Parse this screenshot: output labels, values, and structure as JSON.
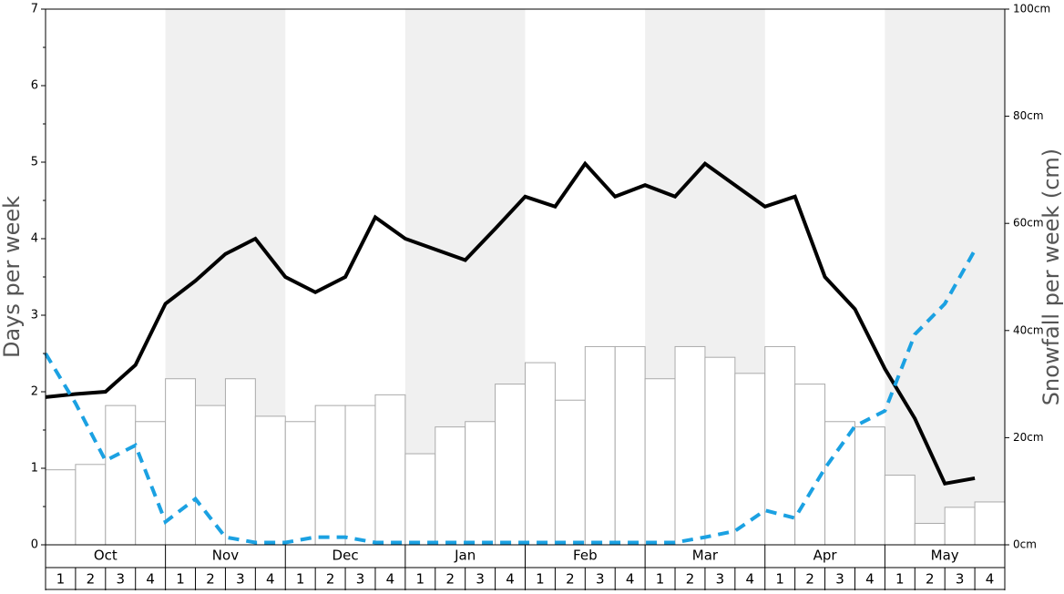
{
  "chart_data": {
    "type": "bar",
    "months": [
      "Oct",
      "Nov",
      "Dec",
      "Jan",
      "Feb",
      "Mar",
      "Apr",
      "May"
    ],
    "shaded_months": [
      false,
      true,
      false,
      true,
      false,
      true,
      false,
      true
    ],
    "categories": [
      "1",
      "2",
      "3",
      "4",
      "1",
      "2",
      "3",
      "4",
      "1",
      "2",
      "3",
      "4",
      "1",
      "2",
      "3",
      "4",
      "1",
      "2",
      "3",
      "4",
      "1",
      "2",
      "3",
      "4",
      "1",
      "2",
      "3",
      "4",
      "1",
      "2",
      "3",
      "4"
    ],
    "y_label": "Days per week",
    "y2_label": "Snowfall per week (cm)",
    "ylim": [
      0,
      7
    ],
    "yticks": [
      0,
      1,
      2,
      3,
      4,
      5,
      6,
      7
    ],
    "y2lim": [
      0,
      100
    ],
    "y2ticks": [
      {
        "value": 0,
        "label": "0cm"
      },
      {
        "value": 20,
        "label": "20cm"
      },
      {
        "value": 40,
        "label": "40cm"
      },
      {
        "value": 60,
        "label": "60cm"
      },
      {
        "value": 80,
        "label": "80cm"
      },
      {
        "value": 100,
        "label": "100cm"
      }
    ],
    "series": [
      {
        "type": "bar",
        "axis": "y2",
        "color": "#ffffff",
        "stroke": "#aaaaaa",
        "values": [
          14,
          15,
          26,
          23,
          31,
          26,
          31,
          24,
          23,
          26,
          26,
          28,
          17,
          22,
          23,
          30,
          34,
          27,
          37,
          37,
          31,
          37,
          35,
          32,
          37,
          30,
          23,
          22,
          13,
          4,
          7,
          8
        ]
      },
      {
        "type": "line",
        "color": "#000000",
        "dashed": false,
        "values": [
          1.93,
          1.97,
          2.0,
          2.35,
          3.15,
          3.45,
          3.8,
          4.0,
          3.5,
          3.3,
          3.5,
          4.28,
          4.0,
          3.86,
          3.72,
          4.13,
          4.55,
          4.42,
          4.98,
          4.55,
          4.7,
          4.55,
          4.98,
          4.7,
          4.42,
          4.55,
          3.5,
          3.08,
          2.3,
          1.65,
          0.8,
          0.87
        ]
      },
      {
        "type": "line",
        "color": "#1ba1e2",
        "dashed": true,
        "values": [
          2.5,
          1.85,
          1.1,
          1.3,
          0.3,
          0.6,
          0.1,
          0.03,
          0.03,
          0.1,
          0.1,
          0.03,
          0.03,
          0.03,
          0.03,
          0.03,
          0.03,
          0.03,
          0.03,
          0.03,
          0.03,
          0.03,
          0.1,
          0.18,
          0.45,
          0.35,
          1.0,
          1.55,
          1.75,
          2.75,
          3.15,
          3.85
        ]
      }
    ]
  }
}
